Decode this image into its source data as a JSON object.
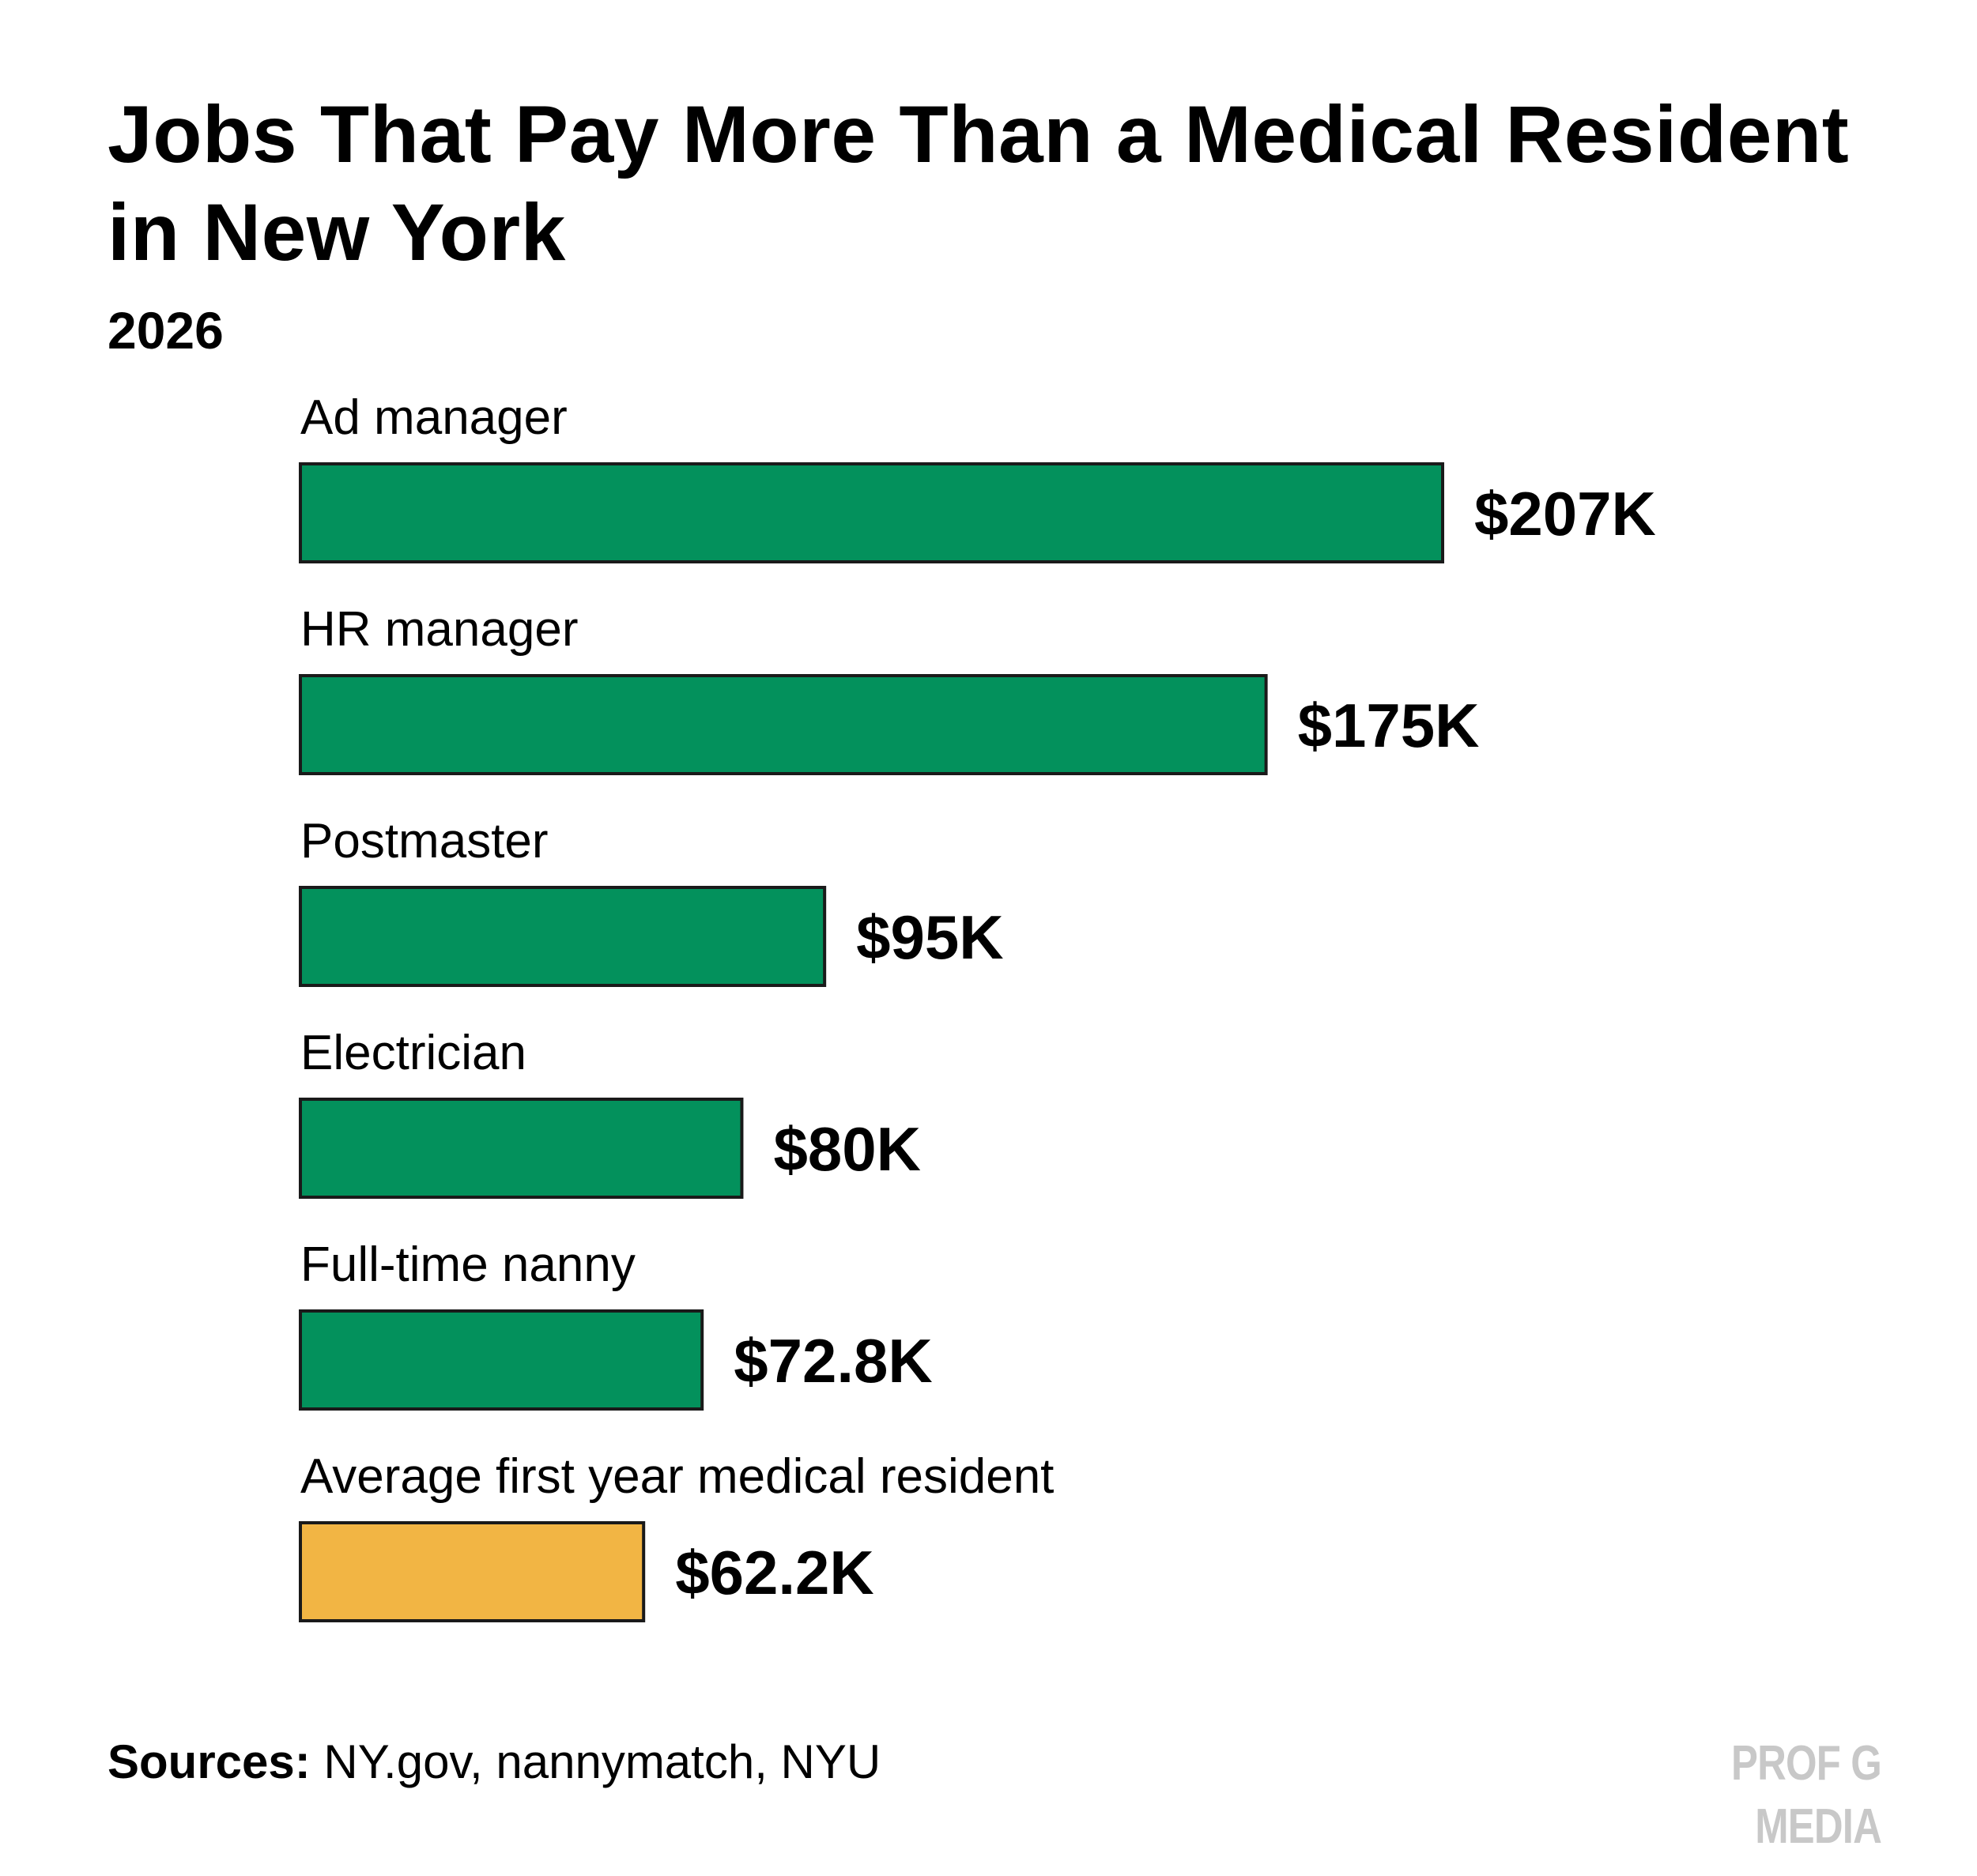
{
  "chart_data": {
    "type": "bar",
    "orientation": "horizontal",
    "title": "Jobs That Pay More Than a Medical Resident in New York",
    "subtitle": "2026",
    "categories": [
      "Ad manager",
      "HR manager",
      "Postmaster",
      "Electrician",
      "Full-time nanny",
      "Average first year medical resident"
    ],
    "values": [
      207,
      175,
      95,
      80,
      72.8,
      62.2
    ],
    "value_labels": [
      "$207K",
      "$175K",
      "$95K",
      "$80K",
      "$72.8K",
      "$62.2K"
    ],
    "units": "thousand USD",
    "xlim": [
      0,
      207
    ],
    "grid": false,
    "legend": "none",
    "colors": [
      "#03915c",
      "#03915c",
      "#03915c",
      "#03915c",
      "#03915c",
      "#f2b544"
    ]
  },
  "footer": {
    "sources_label": "Sources:",
    "sources_text": " NY.gov, nannymatch, NYU",
    "brand": "PROF G MEDIA"
  },
  "theme": {
    "bar_stroke": "#1a1a1a",
    "brand_color": "#c8c8c8"
  }
}
